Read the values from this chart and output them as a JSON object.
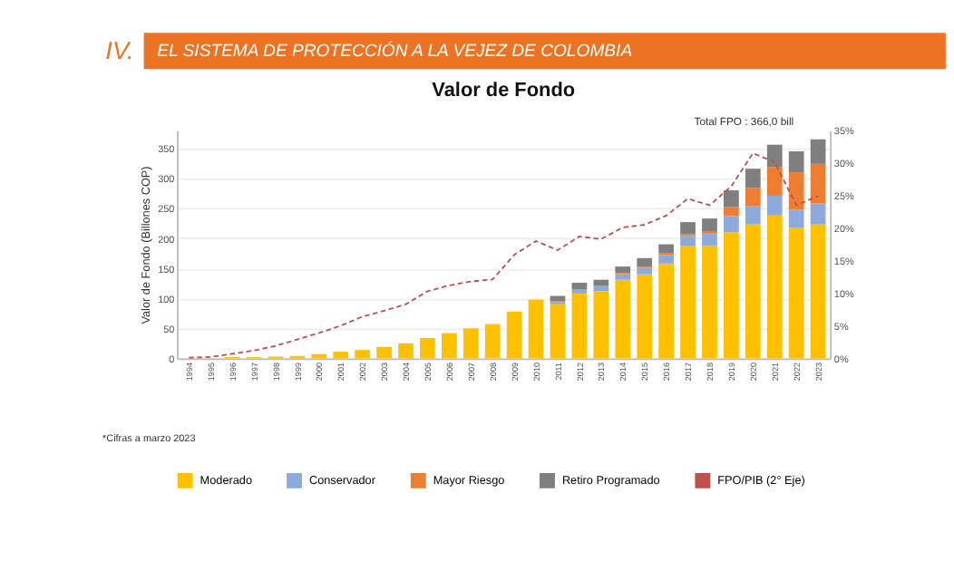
{
  "chart_data": {
    "type": "bar",
    "title": "Valor de Fondo",
    "ylabel": "Valor de Fondo (Billones COP)",
    "categories": [
      "1994",
      "1995",
      "1996",
      "1997",
      "1998",
      "1999",
      "2000",
      "2001",
      "2002",
      "2003",
      "2004",
      "2005",
      "2006",
      "2007",
      "2008",
      "2009",
      "2010",
      "2011",
      "2012",
      "2013",
      "2014",
      "2015",
      "2016",
      "2017",
      "2018",
      "2019",
      "2020",
      "2021",
      "2022",
      "2023"
    ],
    "stacked": true,
    "series": [
      {
        "name": "Moderado",
        "color": "#ffc000",
        "values": [
          null,
          null,
          2,
          2,
          3,
          4,
          7,
          11,
          14,
          19,
          25,
          34,
          42,
          50,
          57,
          78,
          98,
          90,
          108,
          112,
          131,
          140,
          158,
          187,
          188,
          210,
          223,
          238,
          217,
          224
        ]
      },
      {
        "name": "Conservador",
        "color": "#8eaadb",
        "values": [
          0,
          0,
          0,
          0,
          0,
          0,
          0,
          0,
          0,
          0,
          0,
          0,
          0,
          0,
          0,
          0,
          0,
          4,
          6,
          8,
          9,
          11,
          14,
          17,
          21,
          27,
          31,
          33,
          31,
          34
        ]
      },
      {
        "name": "Mayor Riesgo",
        "color": "#ed7d31",
        "values": [
          0,
          0,
          0,
          0,
          0,
          0,
          0,
          0,
          0,
          0,
          0,
          0,
          0,
          0,
          0,
          0,
          0,
          1,
          1,
          1,
          2,
          2,
          3,
          3,
          3,
          15,
          30,
          48,
          62,
          66
        ]
      },
      {
        "name": "Retiro Programado",
        "color": "#7f7f7f",
        "values": [
          0,
          0,
          0,
          0,
          0,
          0,
          0,
          0,
          0,
          0,
          0,
          0,
          0,
          0,
          0,
          0,
          0,
          9,
          11,
          10,
          11,
          14,
          15,
          20,
          21,
          28,
          32,
          37,
          35,
          41
        ]
      },
      {
        "name": "FPO/PIB (2° Eje)",
        "color": "#c0504d",
        "type": "line",
        "axis": "y2",
        "line_style": "dashed",
        "marker": "none",
        "values": [
          0.1,
          0.2,
          0.7,
          1.2,
          1.9,
          2.9,
          3.9,
          5.0,
          6.4,
          7.3,
          8.3,
          10.3,
          11.2,
          11.8,
          12.1,
          15.9,
          18.0,
          16.6,
          18.7,
          18.3,
          20.1,
          20.5,
          21.9,
          24.5,
          23.5,
          26.4,
          31.5,
          30.1,
          23.5,
          24.9
        ]
      }
    ],
    "ylim": [
      0,
      380
    ],
    "yticks": [
      0,
      50,
      100,
      150,
      200,
      250,
      300,
      350
    ],
    "y2lim": [
      0,
      35
    ],
    "y2ticks": [
      {
        "value": 0,
        "label": "0%"
      },
      {
        "value": 5,
        "label": "5%"
      },
      {
        "value": 10,
        "label": "10%"
      },
      {
        "value": 15,
        "label": "15%"
      },
      {
        "value": 20,
        "label": "20%"
      },
      {
        "value": 25,
        "label": "25%"
      },
      {
        "value": 30,
        "label": "30%"
      },
      {
        "value": 35,
        "label": "35%"
      }
    ],
    "grid": "y",
    "legend": "bottom",
    "annotations": [
      "IV.",
      "EL SISTEMA DE PROTECCIÓN A LA VEJEZ DE COLOMBIA",
      "Total FPO : 366,0 bill",
      "*Cifras a marzo 2023"
    ]
  }
}
